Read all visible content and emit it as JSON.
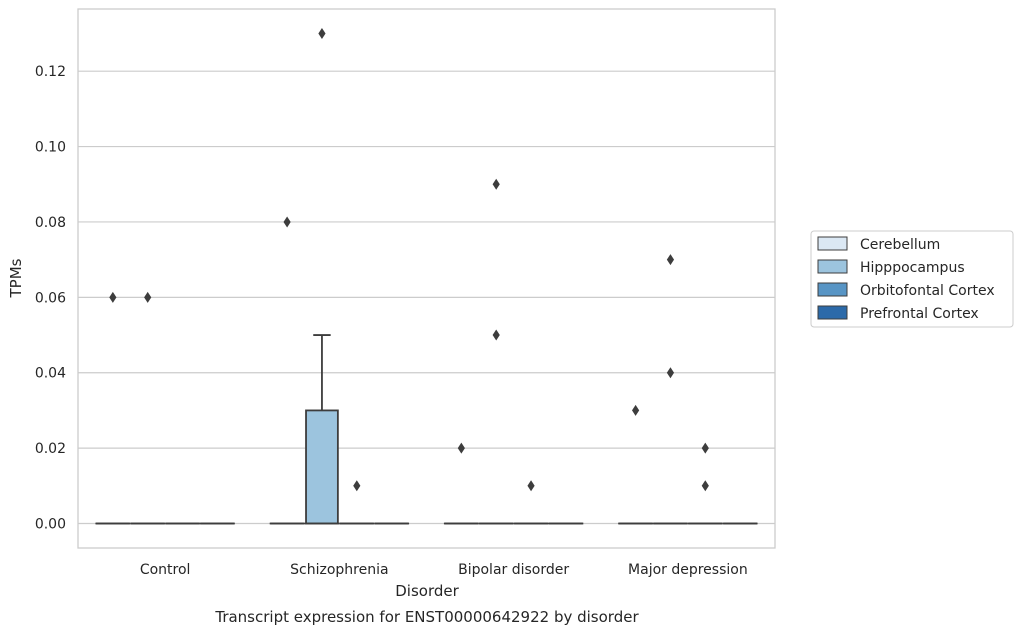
{
  "chart_data": {
    "type": "box",
    "title": "",
    "caption": "Transcript expression for ENST00000642922 by disorder",
    "xlabel": "Disorder",
    "ylabel": "TPMs",
    "ylim": [
      -0.0065,
      0.1365
    ],
    "yticks": [
      0.0,
      0.02,
      0.04,
      0.06,
      0.08,
      0.1,
      0.12
    ],
    "ytick_labels": [
      "0.00",
      "0.02",
      "0.04",
      "0.06",
      "0.08",
      "0.10",
      "0.12"
    ],
    "grid": "horizontal",
    "legend_position": "right",
    "categories": [
      "Control",
      "Schizophrenia",
      "Bipolar disorder",
      "Major depression"
    ],
    "series": [
      {
        "name": "Cerebellum",
        "color": "#dbe8f4",
        "boxes": [
          {
            "q1": 0,
            "median": 0,
            "q3": 0,
            "whisker_low": 0,
            "whisker_high": 0,
            "outliers": [
              0.06
            ]
          },
          {
            "q1": 0,
            "median": 0,
            "q3": 0,
            "whisker_low": 0,
            "whisker_high": 0,
            "outliers": [
              0.08
            ]
          },
          {
            "q1": 0,
            "median": 0,
            "q3": 0,
            "whisker_low": 0,
            "whisker_high": 0,
            "outliers": [
              0.02
            ]
          },
          {
            "q1": 0,
            "median": 0,
            "q3": 0,
            "whisker_low": 0,
            "whisker_high": 0,
            "outliers": [
              0.03
            ]
          }
        ]
      },
      {
        "name": "Hipppocampus",
        "color": "#9cc4de",
        "boxes": [
          {
            "q1": 0,
            "median": 0,
            "q3": 0,
            "whisker_low": 0,
            "whisker_high": 0,
            "outliers": [
              0.06
            ]
          },
          {
            "q1": 0,
            "median": 0,
            "q3": 0.03,
            "whisker_low": 0,
            "whisker_high": 0.05,
            "outliers": [
              0.13
            ]
          },
          {
            "q1": 0,
            "median": 0,
            "q3": 0,
            "whisker_low": 0,
            "whisker_high": 0,
            "outliers": [
              0.09,
              0.05
            ]
          },
          {
            "q1": 0,
            "median": 0,
            "q3": 0,
            "whisker_low": 0,
            "whisker_high": 0,
            "outliers": [
              0.07,
              0.04
            ]
          }
        ]
      },
      {
        "name": "Orbitofontal Cortex",
        "color": "#5895c5",
        "boxes": [
          {
            "q1": 0,
            "median": 0,
            "q3": 0,
            "whisker_low": 0,
            "whisker_high": 0,
            "outliers": []
          },
          {
            "q1": 0,
            "median": 0,
            "q3": 0,
            "whisker_low": 0,
            "whisker_high": 0,
            "outliers": [
              0.01
            ]
          },
          {
            "q1": 0,
            "median": 0,
            "q3": 0,
            "whisker_low": 0,
            "whisker_high": 0,
            "outliers": [
              0.01
            ]
          },
          {
            "q1": 0,
            "median": 0,
            "q3": 0,
            "whisker_low": 0,
            "whisker_high": 0,
            "outliers": [
              0.02,
              0.01
            ]
          }
        ]
      },
      {
        "name": "Prefrontal Cortex",
        "color": "#2c6aa9",
        "boxes": [
          {
            "q1": 0,
            "median": 0,
            "q3": 0,
            "whisker_low": 0,
            "whisker_high": 0,
            "outliers": []
          },
          {
            "q1": 0,
            "median": 0,
            "q3": 0,
            "whisker_low": 0,
            "whisker_high": 0,
            "outliers": []
          },
          {
            "q1": 0,
            "median": 0,
            "q3": 0,
            "whisker_low": 0,
            "whisker_high": 0,
            "outliers": []
          },
          {
            "q1": 0,
            "median": 0,
            "q3": 0,
            "whisker_low": 0,
            "whisker_high": 0,
            "outliers": []
          }
        ]
      }
    ]
  }
}
